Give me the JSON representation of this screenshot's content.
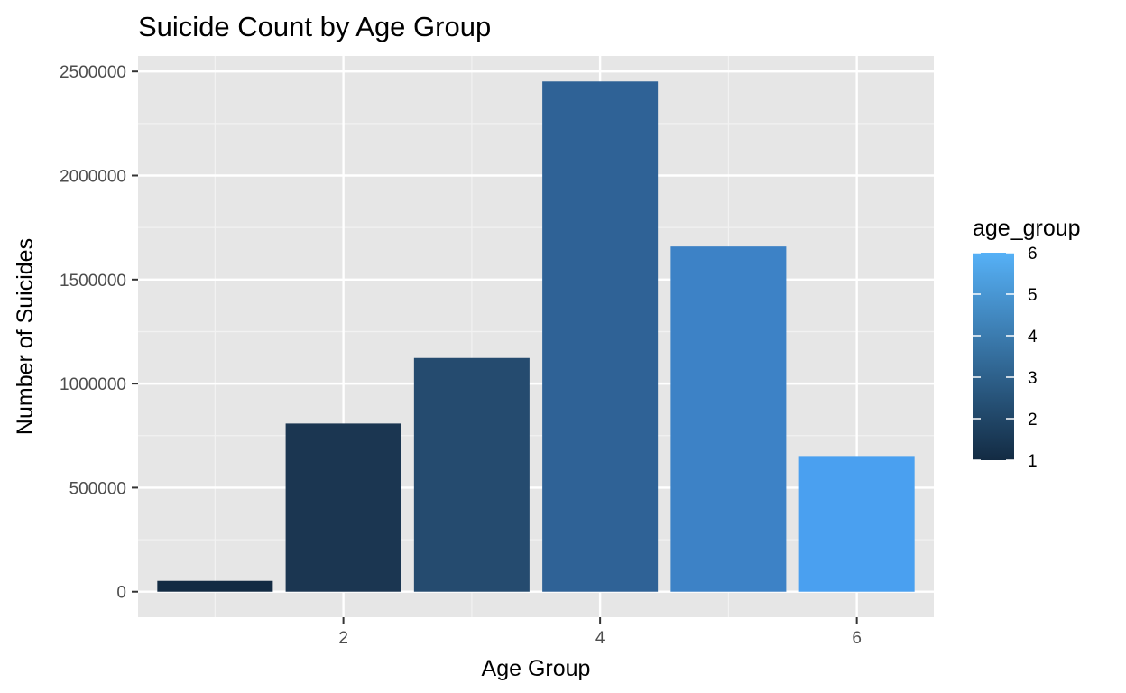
{
  "chart_data": {
    "type": "bar",
    "title": "Suicide Count by Age Group",
    "xlabel": "Age Group",
    "ylabel": "Number of Suicides",
    "x": [
      1,
      2,
      3,
      4,
      5,
      6
    ],
    "values": [
      52000,
      808000,
      1123000,
      2452000,
      1659000,
      652000
    ],
    "xlim": [
      0.4,
      6.6
    ],
    "ylim": [
      -122600,
      2574600
    ],
    "x_ticks": [
      2,
      4,
      6
    ],
    "x_tick_labels": [
      "2",
      "4",
      "6"
    ],
    "y_ticks": [
      0,
      500000,
      1000000,
      1500000,
      2000000,
      2500000
    ],
    "y_tick_labels": [
      "0",
      "500000",
      "1000000",
      "1500000",
      "2000000",
      "2500000"
    ],
    "grid": true,
    "legend": {
      "title": "age_group",
      "placement": "right",
      "type": "colorbar",
      "range": [
        1,
        6
      ],
      "ticks": [
        1,
        2,
        3,
        4,
        5,
        6
      ],
      "tick_labels": [
        "1",
        "2",
        "3",
        "4",
        "5",
        "6"
      ],
      "color_low": "#132b43",
      "color_high": "#56b1f7"
    },
    "colors": {
      "panel_background": "#e6e6e6",
      "grid_major": "#ffffff",
      "bars": [
        "#132b43",
        "#1b3651",
        "#254b6f",
        "#2f6296",
        "#3d82c6",
        "#4aa0f0"
      ]
    }
  }
}
